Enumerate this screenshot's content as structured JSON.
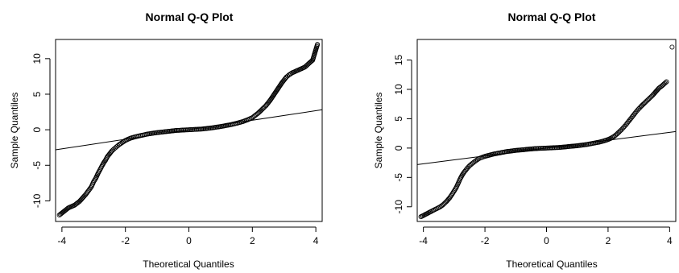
{
  "chart_data": [
    {
      "type": "scatter",
      "title": "Normal Q-Q Plot",
      "xlabel": "Theoretical Quantiles",
      "ylabel": "Sample Quantiles",
      "xlim": [
        -4.2,
        4.2
      ],
      "ylim": [
        -12.9,
        12.7
      ],
      "xticks": [
        -4,
        -2,
        0,
        2,
        4
      ],
      "yticks": [
        -10,
        -5,
        0,
        5,
        10
      ],
      "reference_line": {
        "slope": 0.67,
        "intercept": 0
      },
      "grid": false,
      "legend": "none",
      "series": [
        {
          "x": [
            -4.08,
            -3.8,
            -3.6,
            -3.45,
            -3.35,
            -3.25,
            -3.15,
            -3.07,
            -3.0,
            -2.93,
            -2.87,
            -2.81,
            -2.75,
            -2.69,
            -2.63,
            -2.57,
            -2.5,
            -2.43,
            -2.36,
            -2.28,
            -2.2,
            -2.1,
            -2.0,
            -1.85,
            -1.7,
            -1.5,
            -1.3,
            -1.0,
            -0.7,
            -0.4,
            -0.2,
            0.0,
            0.2,
            0.4,
            0.7,
            1.0,
            1.3,
            1.5,
            1.7,
            1.85,
            2.0,
            2.1,
            2.2,
            2.28,
            2.36,
            2.43,
            2.5,
            2.57,
            2.63,
            2.69,
            2.75,
            2.81,
            2.87,
            2.93,
            3.0,
            3.07,
            3.15,
            3.25,
            3.35,
            3.45,
            3.55,
            3.65,
            3.9,
            4.05
          ],
          "y": [
            -12.0,
            -11.0,
            -10.6,
            -10.1,
            -9.6,
            -9.1,
            -8.5,
            -8.0,
            -7.3,
            -6.8,
            -6.2,
            -5.7,
            -5.2,
            -4.7,
            -4.3,
            -3.8,
            -3.4,
            -3.0,
            -2.7,
            -2.4,
            -2.1,
            -1.8,
            -1.5,
            -1.2,
            -1.0,
            -0.8,
            -0.6,
            -0.4,
            -0.25,
            -0.1,
            -0.05,
            0.0,
            0.05,
            0.1,
            0.25,
            0.45,
            0.7,
            0.9,
            1.15,
            1.4,
            1.7,
            2.05,
            2.4,
            2.75,
            3.1,
            3.4,
            3.8,
            4.2,
            4.6,
            5.0,
            5.4,
            5.8,
            6.2,
            6.6,
            7.0,
            7.4,
            7.7,
            8.0,
            8.2,
            8.4,
            8.6,
            8.8,
            9.8,
            12.0
          ]
        }
      ]
    },
    {
      "type": "scatter",
      "title": "Normal Q-Q Plot",
      "xlabel": "Theoretical Quantiles",
      "ylabel": "Sample Quantiles",
      "xlim": [
        -4.2,
        4.2
      ],
      "ylim": [
        -12.5,
        18.5
      ],
      "xticks": [
        -4,
        -2,
        0,
        2,
        4
      ],
      "yticks": [
        -10,
        -5,
        0,
        5,
        10,
        15
      ],
      "reference_line": {
        "slope": 0.67,
        "intercept": 0
      },
      "grid": false,
      "legend": "none",
      "series": [
        {
          "x": [
            -4.08,
            -3.75,
            -3.6,
            -3.45,
            -3.35,
            -3.25,
            -3.15,
            -3.07,
            -3.0,
            -2.93,
            -2.87,
            -2.81,
            -2.75,
            -2.69,
            -2.63,
            -2.57,
            -2.5,
            -2.43,
            -2.36,
            -2.28,
            -2.2,
            -2.1,
            -2.0,
            -1.85,
            -1.7,
            -1.5,
            -1.3,
            -1.0,
            -0.7,
            -0.4,
            -0.2,
            0.0,
            0.2,
            0.4,
            0.7,
            1.0,
            1.3,
            1.5,
            1.7,
            1.85,
            2.0,
            2.1,
            2.2,
            2.28,
            2.36,
            2.43,
            2.5,
            2.57,
            2.63,
            2.69,
            2.75,
            2.81,
            2.87,
            2.93,
            3.0,
            3.07,
            3.15,
            3.25,
            3.35,
            3.45,
            3.55,
            3.65,
            3.75,
            3.9,
            4.08
          ],
          "y": [
            -11.7,
            -10.8,
            -10.4,
            -10.0,
            -9.6,
            -9.1,
            -8.5,
            -7.9,
            -7.3,
            -6.7,
            -6.0,
            -5.3,
            -4.7,
            -4.2,
            -3.8,
            -3.4,
            -3.0,
            -2.7,
            -2.4,
            -2.1,
            -1.8,
            -1.6,
            -1.4,
            -1.2,
            -1.0,
            -0.8,
            -0.6,
            -0.4,
            -0.25,
            -0.1,
            -0.05,
            0.0,
            0.05,
            0.1,
            0.25,
            0.4,
            0.6,
            0.8,
            1.0,
            1.2,
            1.45,
            1.7,
            2.0,
            2.35,
            2.75,
            3.1,
            3.5,
            3.9,
            4.3,
            4.7,
            5.1,
            5.5,
            5.9,
            6.3,
            6.7,
            7.1,
            7.5,
            8.0,
            8.5,
            9.0,
            9.6,
            10.2,
            10.6,
            11.3,
            17.2
          ]
        }
      ]
    }
  ]
}
